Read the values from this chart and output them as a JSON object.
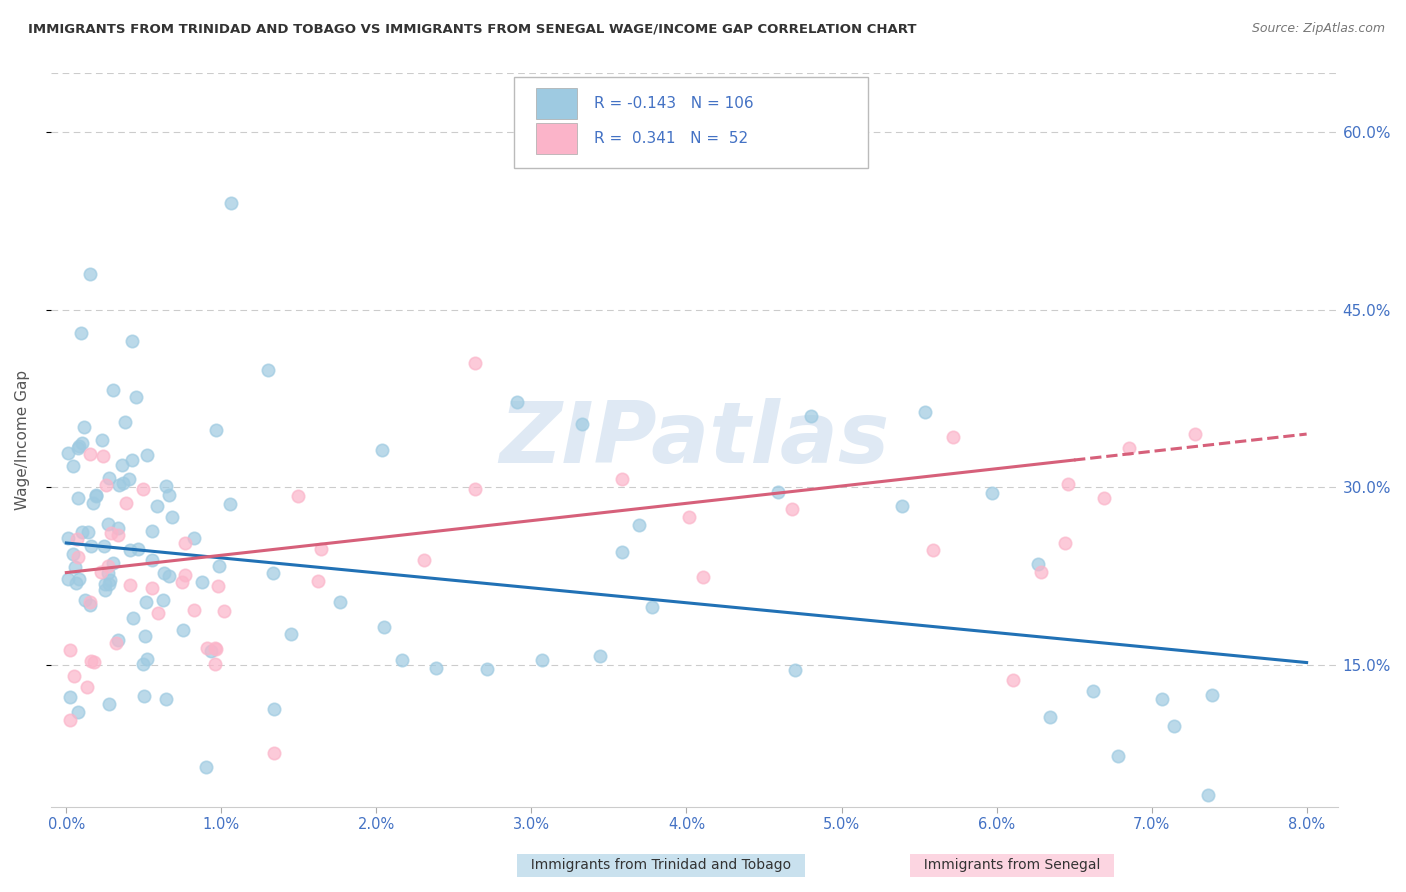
{
  "title": "IMMIGRANTS FROM TRINIDAD AND TOBAGO VS IMMIGRANTS FROM SENEGAL WAGE/INCOME GAP CORRELATION CHART",
  "source": "Source: ZipAtlas.com",
  "xlabel_tt": "Immigrants from Trinidad and Tobago",
  "xlabel_sn": "Immigrants from Senegal",
  "ylabel": "Wage/Income Gap",
  "xlim": [
    -0.001,
    0.082
  ],
  "ylim": [
    0.03,
    0.65
  ],
  "yticks_right": [
    0.15,
    0.3,
    0.45,
    0.6
  ],
  "ytick_right_labels": [
    "15.0%",
    "30.0%",
    "45.0%",
    "60.0%"
  ],
  "color_tt": "#9ecae1",
  "color_sn": "#fbb4c9",
  "color_tt_line": "#2171b5",
  "color_sn_line": "#d6607a",
  "R_tt": -0.143,
  "N_tt": 106,
  "R_sn": 0.341,
  "N_sn": 52,
  "background": "#ffffff",
  "grid_color": "#cccccc",
  "watermark_color": "#b8cfe8",
  "tt_intercept": 0.255,
  "tt_slope": -1.25,
  "sn_intercept": 0.225,
  "sn_slope": 1.5
}
